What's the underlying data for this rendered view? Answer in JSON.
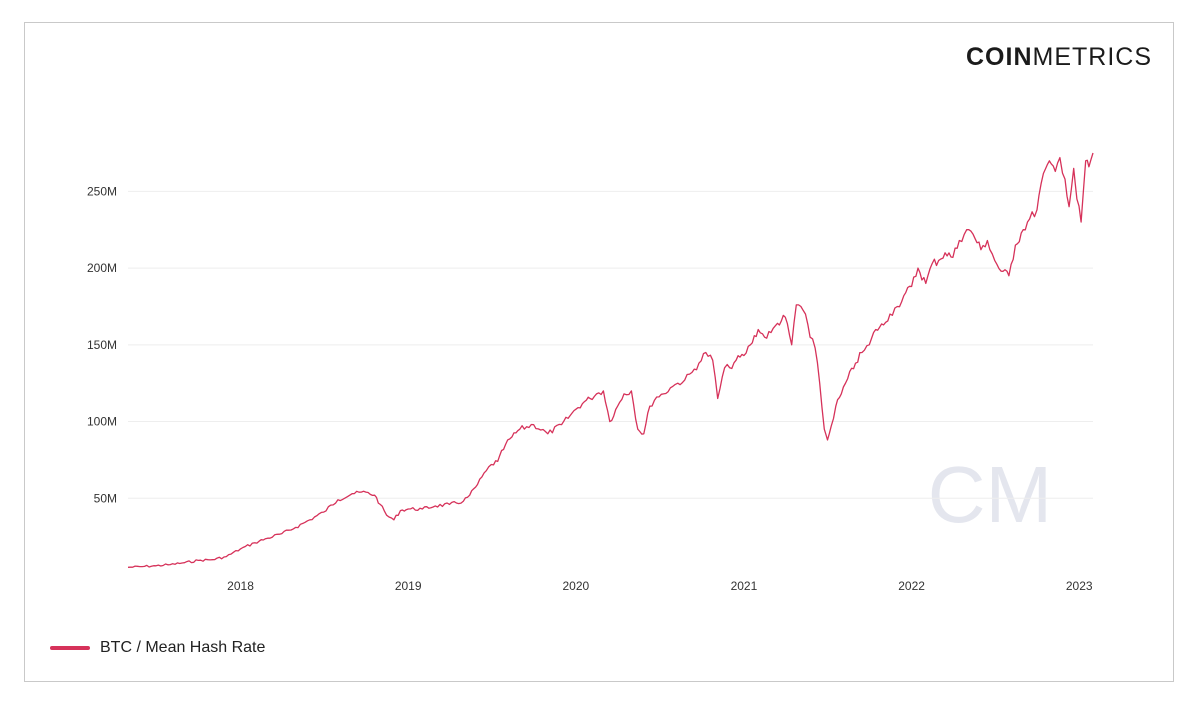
{
  "brand": {
    "logo_bold": "COIN",
    "logo_light": "METRICS",
    "watermark": "CM"
  },
  "colors": {
    "series": "#d6325a",
    "grid": "#eeeeee",
    "tick_text": "#333333",
    "watermark": "#e4e6ee"
  },
  "chart_data": {
    "type": "line",
    "title": "",
    "xlabel": "",
    "ylabel": "",
    "x_ticks": [
      "2018",
      "2019",
      "2020",
      "2021",
      "2022",
      "2023"
    ],
    "y_ticks": [
      "50M",
      "100M",
      "150M",
      "200M",
      "250M"
    ],
    "y_tick_values": [
      50000000,
      100000000,
      150000000,
      200000000,
      250000000
    ],
    "ylim": [
      0,
      290000000
    ],
    "xlim": [
      "2017-05-01",
      "2023-01-31"
    ],
    "grid": true,
    "legend_position": "bottom-left",
    "series": [
      {
        "name": "BTC / Mean Hash Rate",
        "x": [
          "2017-05-01",
          "2017-06-01",
          "2017-07-01",
          "2017-08-01",
          "2017-09-01",
          "2017-10-01",
          "2017-11-01",
          "2017-12-01",
          "2018-01-01",
          "2018-02-01",
          "2018-03-01",
          "2018-04-01",
          "2018-05-01",
          "2018-06-01",
          "2018-07-01",
          "2018-08-01",
          "2018-09-01",
          "2018-10-01",
          "2018-10-20",
          "2018-11-01",
          "2018-11-15",
          "2018-12-01",
          "2018-12-15",
          "2019-01-01",
          "2019-02-01",
          "2019-03-01",
          "2019-04-01",
          "2019-05-01",
          "2019-05-15",
          "2019-06-01",
          "2019-06-20",
          "2019-07-01",
          "2019-07-15",
          "2019-08-01",
          "2019-08-15",
          "2019-09-01",
          "2019-10-01",
          "2019-11-01",
          "2019-12-01",
          "2019-12-20",
          "2020-01-01",
          "2020-01-20",
          "2020-02-01",
          "2020-02-15",
          "2020-03-01",
          "2020-03-15",
          "2020-04-01",
          "2020-04-15",
          "2020-05-01",
          "2020-05-15",
          "2020-05-28",
          "2020-06-10",
          "2020-06-25",
          "2020-07-10",
          "2020-07-25",
          "2020-08-10",
          "2020-08-25",
          "2020-09-10",
          "2020-09-25",
          "2020-10-10",
          "2020-10-25",
          "2020-11-05",
          "2020-11-20",
          "2020-12-01",
          "2020-12-15",
          "2021-01-01",
          "2021-01-15",
          "2021-02-01",
          "2021-02-15",
          "2021-03-01",
          "2021-03-15",
          "2021-04-01",
          "2021-04-15",
          "2021-04-25",
          "2021-05-05",
          "2021-05-15",
          "2021-05-25",
          "2021-06-05",
          "2021-06-15",
          "2021-06-25",
          "2021-07-02",
          "2021-07-10",
          "2021-07-20",
          "2021-08-01",
          "2021-08-15",
          "2021-09-01",
          "2021-09-15",
          "2021-10-01",
          "2021-10-15",
          "2021-11-01",
          "2021-11-15",
          "2021-12-01",
          "2021-12-15",
          "2022-01-01",
          "2022-01-15",
          "2022-02-01",
          "2022-02-15",
          "2022-03-01",
          "2022-03-15",
          "2022-04-01",
          "2022-04-15",
          "2022-05-01",
          "2022-05-15",
          "2022-06-01",
          "2022-06-15",
          "2022-07-01",
          "2022-07-15",
          "2022-08-01",
          "2022-08-15",
          "2022-09-01",
          "2022-09-15",
          "2022-10-01",
          "2022-10-10",
          "2022-10-20",
          "2022-11-01",
          "2022-11-10",
          "2022-11-20",
          "2022-12-01",
          "2022-12-10",
          "2022-12-20",
          "2022-12-27",
          "2023-01-05",
          "2023-01-15",
          "2023-01-22",
          "2023-01-31"
        ],
        "values": [
          5000000,
          5500000,
          6000000,
          6800000,
          8000000,
          9500000,
          10000000,
          12000000,
          17000000,
          21000000,
          24000000,
          27000000,
          31000000,
          36000000,
          41000000,
          49000000,
          53000000,
          54000000,
          52000000,
          46000000,
          39000000,
          36000000,
          42000000,
          43000000,
          43000000,
          45000000,
          46000000,
          48000000,
          52000000,
          59000000,
          68000000,
          72000000,
          74000000,
          85000000,
          90000000,
          95000000,
          98000000,
          92000000,
          98000000,
          104000000,
          108000000,
          113000000,
          115000000,
          118000000,
          120000000,
          100000000,
          110000000,
          118000000,
          120000000,
          95000000,
          92000000,
          110000000,
          116000000,
          118000000,
          122000000,
          125000000,
          127000000,
          132000000,
          138000000,
          145000000,
          140000000,
          115000000,
          135000000,
          135000000,
          140000000,
          143000000,
          150000000,
          160000000,
          155000000,
          158000000,
          164000000,
          168000000,
          150000000,
          176000000,
          175000000,
          170000000,
          155000000,
          148000000,
          125000000,
          95000000,
          88000000,
          97000000,
          110000000,
          118000000,
          128000000,
          138000000,
          145000000,
          150000000,
          160000000,
          163000000,
          170000000,
          175000000,
          182000000,
          188000000,
          200000000,
          190000000,
          203000000,
          205000000,
          210000000,
          207000000,
          218000000,
          225000000,
          222000000,
          212000000,
          218000000,
          205000000,
          198000000,
          195000000,
          215000000,
          225000000,
          232000000,
          238000000,
          255000000,
          265000000,
          268000000,
          263000000,
          272000000,
          258000000,
          240000000,
          265000000,
          245000000,
          230000000,
          270000000,
          266000000,
          275000000
        ]
      }
    ]
  }
}
